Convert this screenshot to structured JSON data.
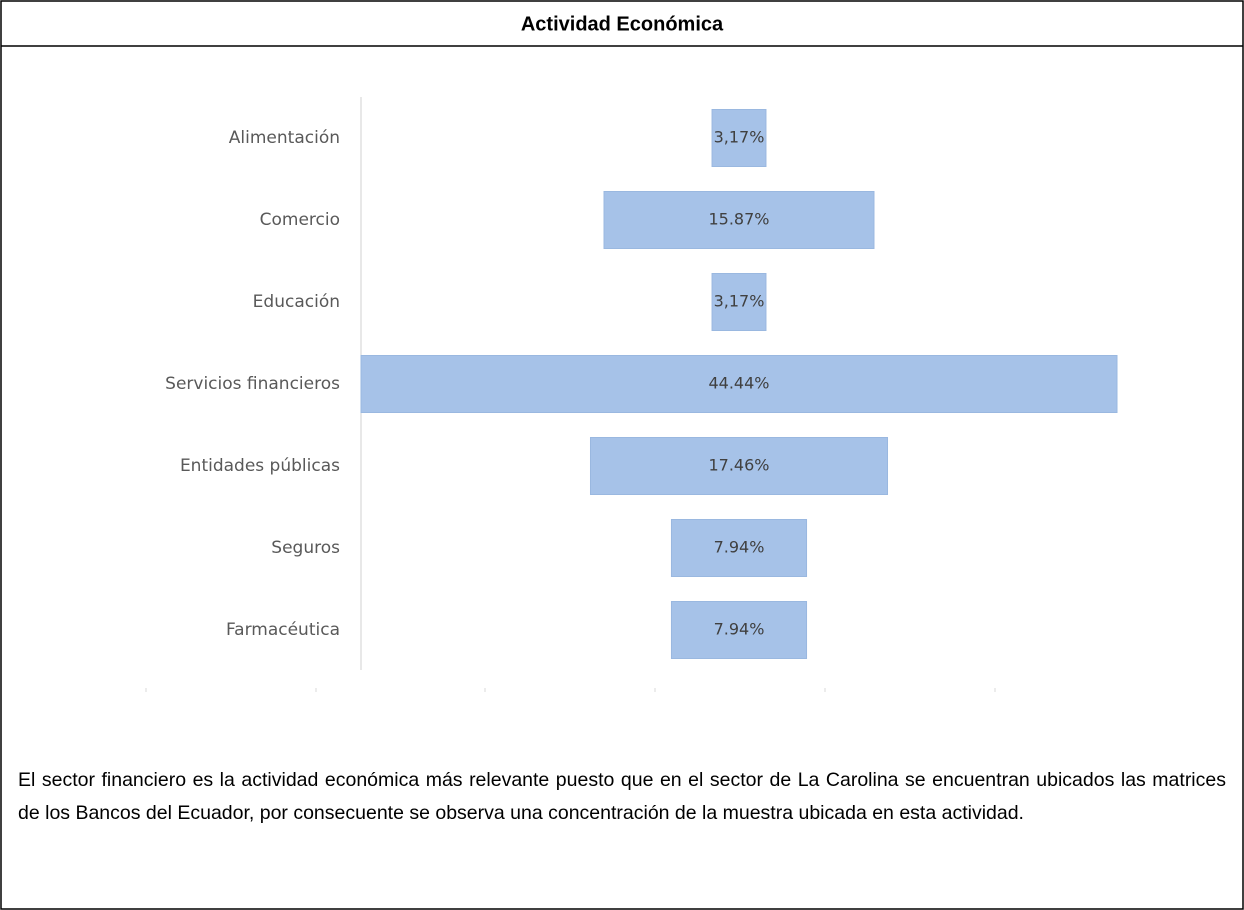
{
  "chart_data": {
    "type": "funnel",
    "title": "Actividad Económica",
    "categories": [
      "Alimentación",
      "Comercio",
      "Educación",
      "Servicios financieros",
      "Entidades públicas",
      "Seguros",
      "Farmacéutica"
    ],
    "values": [
      3.17,
      15.87,
      3.17,
      44.44,
      17.46,
      7.94,
      7.94
    ],
    "value_labels": [
      "3,17%",
      "15.87%",
      "3,17%",
      "44.44%",
      "17.46%",
      "7.94%",
      "7.94%"
    ],
    "color": "#a6c2e8"
  },
  "paragraph": "El sector financiero es la actividad económica más relevante puesto que en el sector de La Carolina se encuentran ubicados las matrices de los Bancos del Ecuador, por consecuente se observa una concentración de la muestra ubicada en esta actividad."
}
